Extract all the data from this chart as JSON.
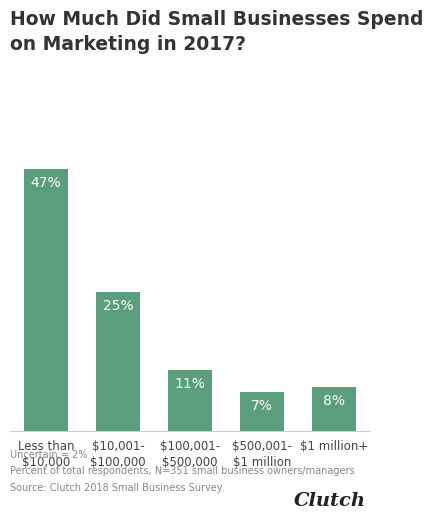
{
  "title": "How Much Did Small Businesses Spend\non Marketing in 2017?",
  "categories": [
    "Less than\n$10,000",
    "$10,001-\n$100,000",
    "$100,001-\n$500,000",
    "$500,001-\n$1 million",
    "$1 million+"
  ],
  "values": [
    47,
    25,
    11,
    7,
    8
  ],
  "labels": [
    "47%",
    "25%",
    "11%",
    "7%",
    "8%"
  ],
  "bar_color": "#5a9e7c",
  "label_color": "#ffffff",
  "title_fontsize": 13.5,
  "label_fontsize": 10,
  "tick_fontsize": 8.5,
  "footnote_lines": [
    "Uncertain = 2%",
    "Percent of total respondents, N=351 small business owners/managers",
    "Source: Clutch 2018 Small Business Survey"
  ],
  "footnote_fontsize": 7.0,
  "clutch_text": "Clutch",
  "background_color": "#ffffff",
  "ylim": [
    0,
    54
  ]
}
